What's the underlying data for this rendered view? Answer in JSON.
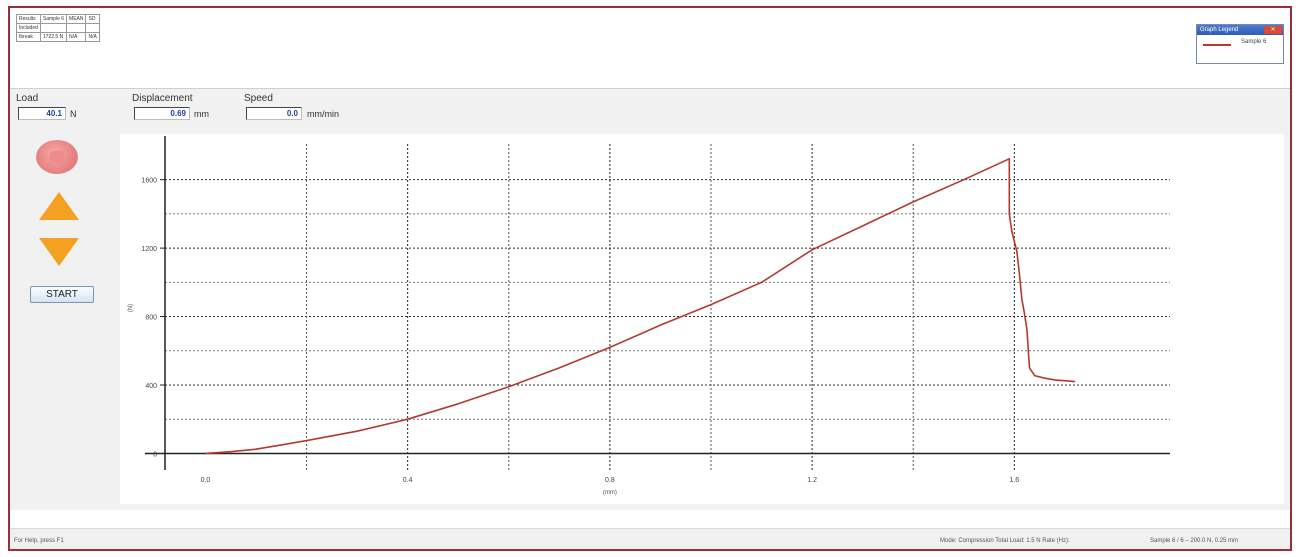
{
  "results_table": {
    "rows": [
      [
        "Results",
        "Sample 6",
        "MEAN",
        "SD"
      ],
      [
        "Included",
        "",
        "",
        ""
      ],
      [
        "Ibreak",
        "1722.5 N",
        "N/A",
        "N/A"
      ]
    ]
  },
  "legend": {
    "title": "Graph Legend",
    "close_label": "✕",
    "series_label": "Sample 6",
    "series_color": "#b23a2e"
  },
  "readouts": {
    "load": {
      "label": "Load",
      "value": "40.1",
      "unit": "N"
    },
    "displacement": {
      "label": "Displacement",
      "value": "0.69",
      "unit": "mm"
    },
    "speed": {
      "label": "Speed",
      "value": "0.0",
      "unit": "mm/min"
    }
  },
  "controls": {
    "start_label": "START",
    "stop_icon": "stop-icon",
    "up_icon": "arrow-up-icon",
    "down_icon": "arrow-down-icon",
    "accent_color": "#f4a020"
  },
  "status_bar": {
    "help_text": "For Help, press F1",
    "mode_text": "Mode: Compression  Total Load: 1.5 N  Rate (Hz):",
    "sample_text": "Sample 6 / 6 – 200.0 N, 0.25 mm"
  },
  "chart_data": {
    "type": "line",
    "xlabel": "(mm)",
    "ylabel": "(N)",
    "xlim": [
      -0.08,
      1.9
    ],
    "ylim": [
      -50,
      1750
    ],
    "x_ticks": [
      0.0,
      0.4,
      0.8,
      1.2,
      1.6
    ],
    "x_tick_labels": [
      "0.0",
      "0.4",
      "0.8",
      "1.2",
      "1.6"
    ],
    "y_ticks": [
      0,
      400,
      800,
      1200,
      1600
    ],
    "y_tick_labels": [
      "0",
      "400",
      "800",
      "1200",
      "1600"
    ],
    "grid": true,
    "legend_position": "top-right",
    "series": [
      {
        "name": "Sample 6",
        "color": "#b23a2e",
        "x": [
          0.0,
          0.05,
          0.1,
          0.15,
          0.2,
          0.3,
          0.4,
          0.5,
          0.6,
          0.7,
          0.8,
          0.9,
          1.0,
          1.1,
          1.2,
          1.3,
          1.4,
          1.5,
          1.59,
          1.59,
          1.595,
          1.6,
          1.605,
          1.61,
          1.615,
          1.62,
          1.625,
          1.63,
          1.64,
          1.66,
          1.68,
          1.72
        ],
        "y": [
          0,
          10,
          25,
          50,
          75,
          130,
          200,
          290,
          390,
          500,
          620,
          750,
          870,
          1000,
          1190,
          1330,
          1470,
          1600,
          1722,
          1400,
          1300,
          1240,
          1180,
          1050,
          900,
          820,
          720,
          500,
          455,
          440,
          430,
          420
        ]
      }
    ]
  }
}
